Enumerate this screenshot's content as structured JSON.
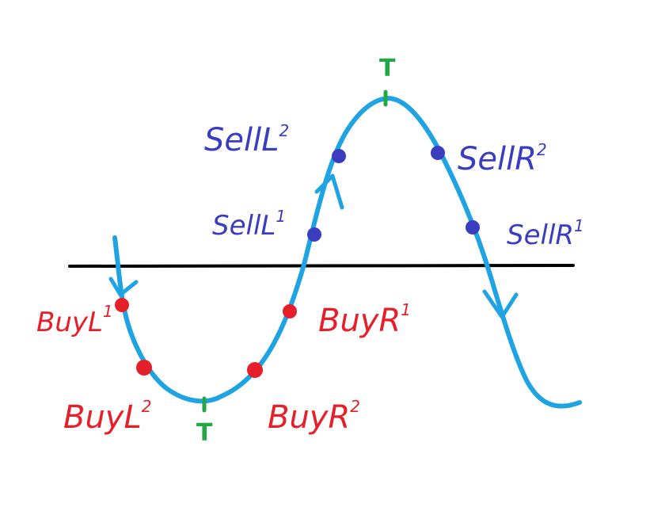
{
  "colors": {
    "curve": "#1fa3e3",
    "baseline": "#000000",
    "sell": "#3b3dbf",
    "buy": "#e5202a",
    "turning": "#22a845"
  },
  "labels": {
    "top_turning": "T",
    "bottom_turning": "T",
    "sell_l2": {
      "text": "SellL",
      "sup": "2"
    },
    "sell_l1": {
      "text": "SellL",
      "sup": "1"
    },
    "sell_r2": {
      "text": "SellR",
      "sup": "2"
    },
    "sell_r1": {
      "text": "SellR",
      "sup": "1"
    },
    "buy_l1": {
      "text": "BuyL",
      "sup": "1"
    },
    "buy_l2": {
      "text": "BuyL",
      "sup": "2"
    },
    "buy_r1": {
      "text": "BuyR",
      "sup": "1"
    },
    "buy_r2": {
      "text": "BuyR",
      "sup": "2"
    }
  }
}
